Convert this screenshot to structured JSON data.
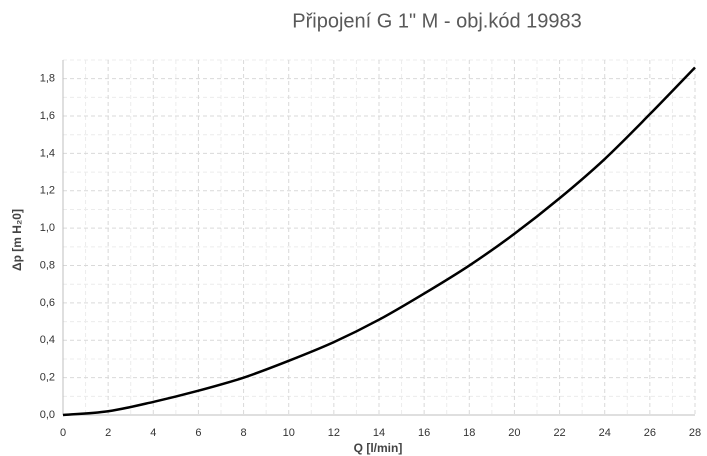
{
  "chart_data": {
    "type": "line",
    "title": "Připojení G 1\" M - obj.kód 19983",
    "x_label": "Q [l/min]",
    "y_label": "Δp [m H₂0]",
    "x": [
      0,
      2,
      4,
      6,
      8,
      10,
      12,
      14,
      16,
      18,
      20,
      22,
      24,
      26,
      28
    ],
    "series": [
      {
        "name": "Δp",
        "color": "#000000",
        "values": [
          0,
          0.02,
          0.07,
          0.13,
          0.2,
          0.29,
          0.39,
          0.51,
          0.65,
          0.8,
          0.97,
          1.16,
          1.37,
          1.61,
          1.86
        ]
      }
    ],
    "xlim": [
      0,
      28
    ],
    "xticks": [
      0,
      2,
      4,
      6,
      8,
      10,
      12,
      14,
      16,
      18,
      20,
      22,
      24,
      26,
      28
    ],
    "ylim": [
      0,
      1.9
    ],
    "yticks": [
      {
        "value": 0,
        "label": "0,0"
      },
      {
        "value": 0.2,
        "label": "0,2"
      },
      {
        "value": 0.4,
        "label": "0,4"
      },
      {
        "value": 0.6,
        "label": "0,6"
      },
      {
        "value": 0.8,
        "label": "0,8"
      },
      {
        "value": 1.0,
        "label": "1,0"
      },
      {
        "value": 1.2,
        "label": "1,2"
      },
      {
        "value": 1.4,
        "label": "1,4"
      },
      {
        "value": 1.6,
        "label": "1,6"
      },
      {
        "value": 1.8,
        "label": "1,8"
      }
    ],
    "grid": true
  }
}
